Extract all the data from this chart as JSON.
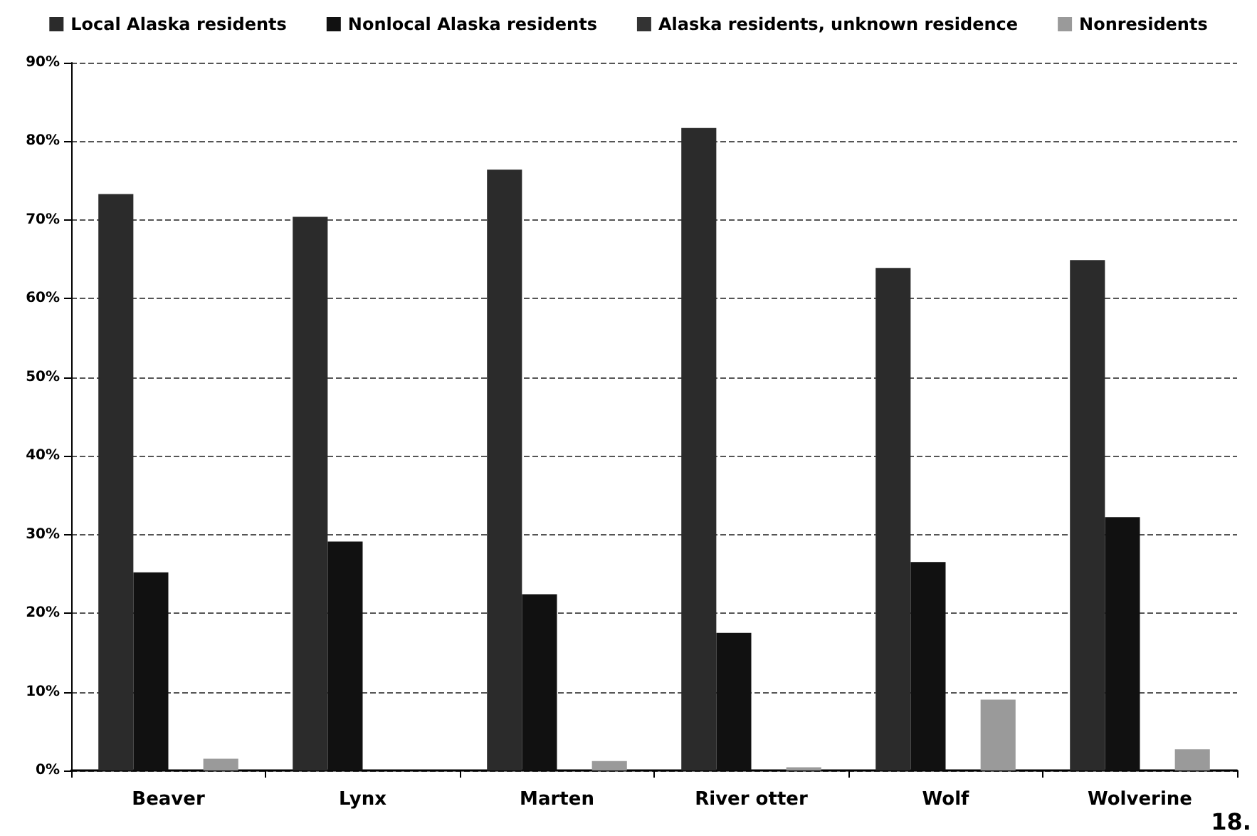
{
  "chart_data": {
    "type": "bar",
    "categories": [
      "Beaver",
      "Lynx",
      "Marten",
      "River otter",
      "Wolf",
      "Wolverine"
    ],
    "series": [
      {
        "name": "Local Alaska residents",
        "color": "#2b2b2b",
        "values": [
          73.3,
          70.4,
          76.4,
          81.7,
          63.9,
          64.9
        ]
      },
      {
        "name": "Nonlocal Alaska residents",
        "color": "#111111",
        "values": [
          25.2,
          29.1,
          22.4,
          17.5,
          26.5,
          32.2
        ]
      },
      {
        "name": "Alaska residents, unknown residence",
        "color": "#333333",
        "values": [
          0,
          0,
          0,
          0,
          0,
          0
        ]
      },
      {
        "name": "Nonresidents",
        "color": "#9a9a9a",
        "values": [
          1.5,
          0,
          1.2,
          0.4,
          9.0,
          2.7
        ]
      }
    ],
    "ylim": [
      0,
      90
    ],
    "yticks": [
      {
        "value": 0,
        "label": "0%"
      },
      {
        "value": 10,
        "label": "10%"
      },
      {
        "value": 20,
        "label": "20%"
      },
      {
        "value": 30,
        "label": "30%"
      },
      {
        "value": 40,
        "label": "40%"
      },
      {
        "value": 50,
        "label": "50%"
      },
      {
        "value": 60,
        "label": "60%"
      },
      {
        "value": 70,
        "label": "70%"
      },
      {
        "value": 80,
        "label": "80%"
      },
      {
        "value": 90,
        "label": "90%"
      }
    ],
    "grid": "y",
    "legend": "top",
    "annotations": [
      "18."
    ]
  }
}
